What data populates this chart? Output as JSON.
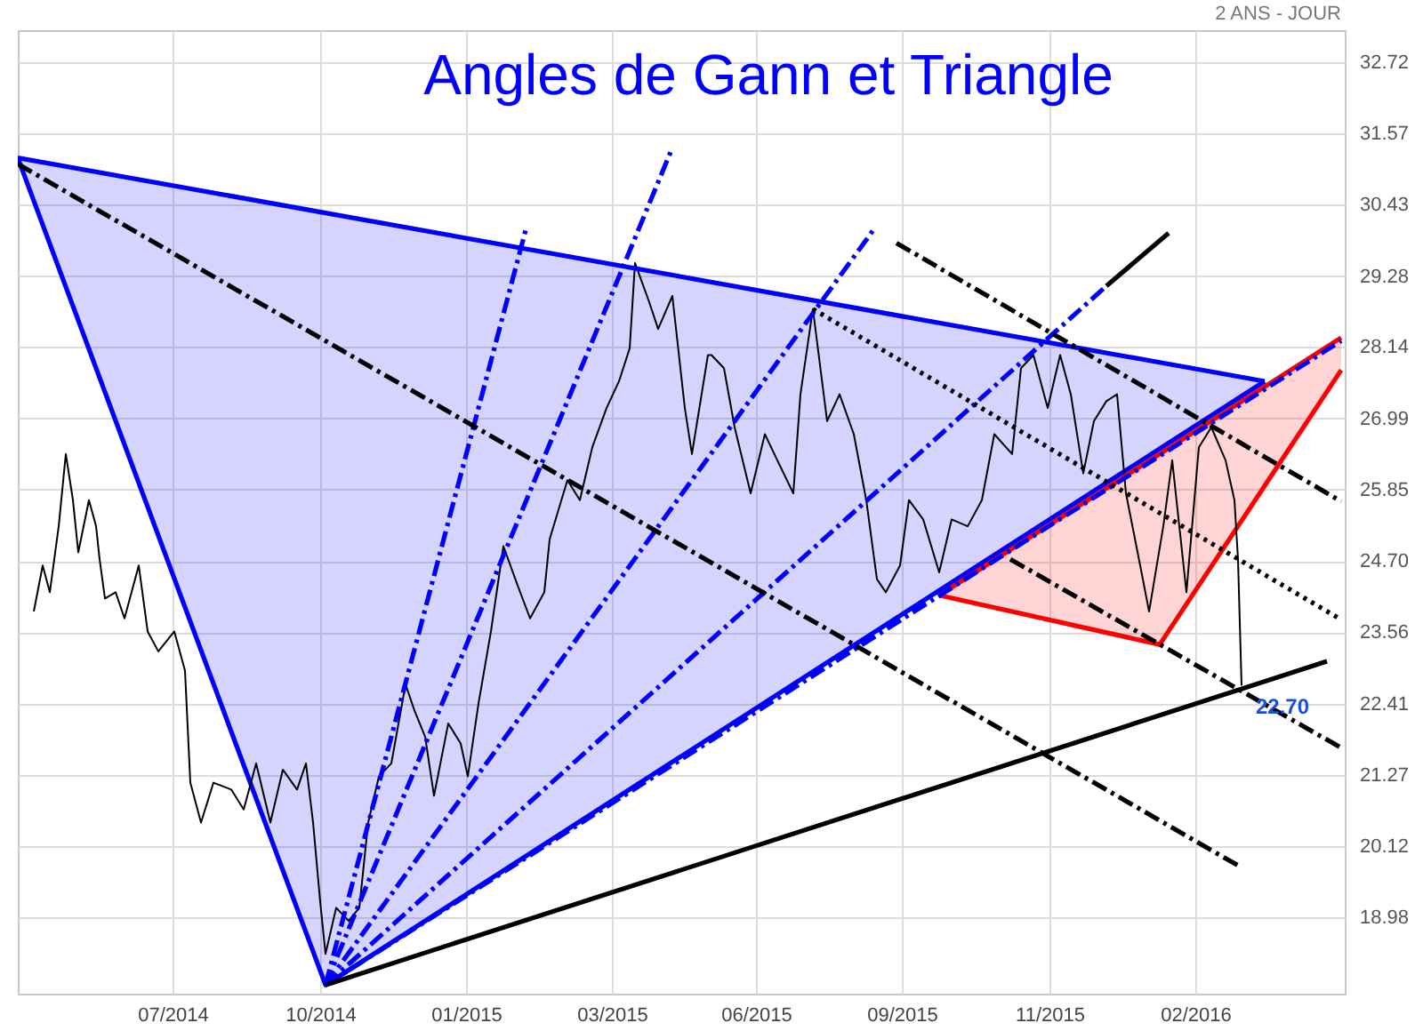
{
  "chart_data": {
    "type": "line",
    "title": "Angles de Gann et Triangle",
    "subtitle": "2 ANS - JOUR",
    "xlim": [
      "2014-04-24",
      "2016-05-09"
    ],
    "xticks": [
      {
        "value": "2014-07-20",
        "label": "07/2014"
      },
      {
        "value": "2014-10-11",
        "label": "10/2014"
      },
      {
        "value": "2015-01-01",
        "label": "01/2015"
      },
      {
        "value": "2015-03-24",
        "label": "03/2015"
      },
      {
        "value": "2015-06-13",
        "label": "06/2015"
      },
      {
        "value": "2015-09-03",
        "label": "09/2015"
      },
      {
        "value": "2015-11-25",
        "label": "11/2015"
      },
      {
        "value": "2016-02-15",
        "label": "02/2016"
      }
    ],
    "ylim": [
      17.75,
      33.23
    ],
    "yticks": [
      18.98,
      20.12,
      21.27,
      22.41,
      23.56,
      {
        "value": 24.7,
        "label": "24.70"
      },
      25.85,
      26.99,
      28.14,
      29.28,
      30.43,
      31.57,
      32.72
    ],
    "grid": true,
    "annotations": [
      {
        "text": "22.70",
        "x": "2016-03-12",
        "y": 22.7
      }
    ],
    "series": [
      {
        "type": "line",
        "color": "#0000ff",
        "line_style": "solid",
        "x": [
          "2014-04-24",
          "2014-10-14",
          "2016-03-25"
        ],
        "values": [
          31.18,
          17.89,
          27.59
        ],
        "lower": [
          31.18,
          17.89,
          27.59
        ],
        "upper": [
          31.18,
          30.29,
          27.59
        ]
      },
      {
        "type": "line",
        "color": "#ff0000",
        "line_style": "solid",
        "x": [
          "2015-09-24",
          "2016-01-26",
          "2016-05-07"
        ],
        "values": [
          24.15,
          23.36,
          27.77
        ],
        "lower": [
          24.15,
          23.36,
          27.77
        ],
        "upper": [
          24.15,
          26.39,
          28.29
        ]
      },
      {
        "type": "line",
        "color": "#000000",
        "line_style": "solid",
        "x": [
          "2014-05-03",
          "2014-05-08",
          "2014-05-12",
          "2014-05-17",
          "2014-05-21",
          "2014-05-25",
          "2014-05-28",
          "2014-06-03",
          "2014-06-07",
          "2014-06-09",
          "2014-06-12",
          "2014-06-18",
          "2014-06-23",
          "2014-07-01",
          "2014-07-06",
          "2014-07-12",
          "2014-07-21",
          "2014-07-27",
          "2014-07-30",
          "2014-08-05",
          "2014-08-12",
          "2014-08-22",
          "2014-08-29",
          "2014-09-05",
          "2014-09-13",
          "2014-09-20",
          "2014-09-28",
          "2014-10-03",
          "2014-10-07",
          "2014-10-11",
          "2014-10-14",
          "2014-10-20",
          "2014-10-27",
          "2014-11-02",
          "2014-11-07",
          "2014-11-13",
          "2014-11-20",
          "2014-11-28",
          "2014-12-03",
          "2014-12-09",
          "2014-12-14",
          "2014-12-22",
          "2014-12-29",
          "2015-01-02",
          "2015-01-08",
          "2015-01-15",
          "2015-01-22",
          "2015-01-30",
          "2015-02-06",
          "2015-02-14",
          "2015-02-17",
          "2015-02-27",
          "2015-03-06",
          "2015-03-13",
          "2015-03-21",
          "2015-03-28",
          "2015-04-03",
          "2015-04-06",
          "2015-04-14",
          "2015-04-19",
          "2015-04-27",
          "2015-05-04",
          "2015-05-08",
          "2015-05-17",
          "2015-05-19",
          "2015-05-26",
          "2015-06-01",
          "2015-06-10",
          "2015-06-18",
          "2015-06-25",
          "2015-07-04",
          "2015-07-08",
          "2015-07-15",
          "2015-07-23",
          "2015-07-30",
          "2015-08-07",
          "2015-08-14",
          "2015-08-20",
          "2015-08-25",
          "2015-09-02",
          "2015-09-07",
          "2015-09-15",
          "2015-09-24",
          "2015-10-01",
          "2015-10-10",
          "2015-10-18",
          "2015-10-25",
          "2015-11-04",
          "2015-11-09",
          "2015-11-16",
          "2015-11-24",
          "2015-12-01",
          "2015-12-07",
          "2015-12-14",
          "2015-12-20",
          "2015-12-27",
          "2016-01-02",
          "2016-01-07",
          "2016-01-15",
          "2016-01-20",
          "2016-01-28",
          "2016-02-02",
          "2016-02-10",
          "2016-02-17",
          "2016-02-24",
          "2016-03-03",
          "2016-03-08",
          "2016-03-10",
          "2016-03-12"
        ],
        "values": [
          23.89,
          24.63,
          24.2,
          25.26,
          26.42,
          25.68,
          24.84,
          25.68,
          25.26,
          24.73,
          24.1,
          24.2,
          23.78,
          24.63,
          23.57,
          23.25,
          23.57,
          22.94,
          21.14,
          20.5,
          21.14,
          21.03,
          20.71,
          21.45,
          20.5,
          21.35,
          21.03,
          21.45,
          20.5,
          19.23,
          18.39,
          19.13,
          18.92,
          19.13,
          20.5,
          21.24,
          21.45,
          22.72,
          22.3,
          21.88,
          20.93,
          22.09,
          21.77,
          21.24,
          22.41,
          23.57,
          24.94,
          24.31,
          23.78,
          24.2,
          25.05,
          26.0,
          25.68,
          26.53,
          27.16,
          27.59,
          28.12,
          29.49,
          28.86,
          28.43,
          28.96,
          27.16,
          26.42,
          28.01,
          28.01,
          27.8,
          26.85,
          25.79,
          26.74,
          26.32,
          25.79,
          27.38,
          28.75,
          26.95,
          27.38,
          26.74,
          25.68,
          24.41,
          24.2,
          24.63,
          25.68,
          25.37,
          24.52,
          25.37,
          25.26,
          25.68,
          26.74,
          26.42,
          27.8,
          28.01,
          27.16,
          28.01,
          27.38,
          26.11,
          26.95,
          27.27,
          27.38,
          25.79,
          24.63,
          23.89,
          25.26,
          26.32,
          24.2,
          26.53,
          26.85,
          26.32,
          25.68,
          24.73,
          22.7
        ]
      },
      {
        "type": "line",
        "color": "#0000ff",
        "line_style": "solid",
        "x": [
          "2014-04-24",
          "2016-03-25"
        ],
        "values": [
          31.18,
          27.59
        ]
      },
      {
        "type": "line",
        "color": "#ff0000",
        "line_style": "solid",
        "x": [
          "2015-09-24",
          "2016-05-07"
        ],
        "values": [
          24.15,
          28.29
        ]
      },
      {
        "type": "line",
        "color": "#0000ff",
        "line_style": "dashed",
        "x": [
          "2014-10-14",
          "2015-02-04"
        ],
        "values": [
          17.89,
          30.07
        ]
      },
      {
        "type": "line",
        "color": "#0000ff",
        "line_style": "dashed",
        "x": [
          "2014-10-14",
          "2015-04-27"
        ],
        "values": [
          17.89,
          31.34
        ]
      },
      {
        "type": "line",
        "color": "#0000ff",
        "line_style": "dashed",
        "x": [
          "2014-10-14",
          "2015-08-18"
        ],
        "values": [
          17.89,
          30.02
        ]
      },
      {
        "type": "line",
        "color": "#0000ff",
        "line_style": "dashed",
        "x": [
          "2014-10-14",
          "2015-12-27"
        ],
        "values": [
          17.89,
          29.12
        ]
      },
      {
        "type": "line",
        "color": "#0000ff",
        "line_style": "dashed",
        "x": [
          "2014-10-14",
          "2016-05-07"
        ],
        "values": [
          17.89,
          28.24
        ]
      },
      {
        "type": "line",
        "color": "#000000",
        "line_style": "solid",
        "x": [
          "2014-10-14",
          "2016-04-29"
        ],
        "values": [
          17.89,
          23.09
        ]
      },
      {
        "type": "line",
        "color": "#000000",
        "line_style": "solid",
        "x": [
          "2015-12-27",
          "2016-01-31"
        ],
        "values": [
          29.12,
          29.97
        ]
      },
      {
        "type": "line",
        "color": "#000000",
        "line_style": "dashed",
        "x": [
          "2014-04-24",
          "2016-03-10"
        ],
        "values": [
          31.08,
          19.81
        ]
      },
      {
        "type": "line",
        "color": "#000000",
        "line_style": "dashed",
        "x": [
          "2015-08-31",
          "2016-05-07"
        ],
        "values": [
          29.81,
          25.66
        ]
      },
      {
        "type": "line",
        "color": "#000000",
        "line_style": "dashed",
        "x": [
          "2015-11-03",
          "2016-05-07"
        ],
        "values": [
          24.73,
          21.7
        ]
      },
      {
        "type": "line",
        "color": "#000000",
        "line_style": "dotted",
        "x": [
          "2015-07-15",
          "2016-05-07"
        ],
        "values": [
          28.75,
          23.76
        ]
      }
    ]
  }
}
